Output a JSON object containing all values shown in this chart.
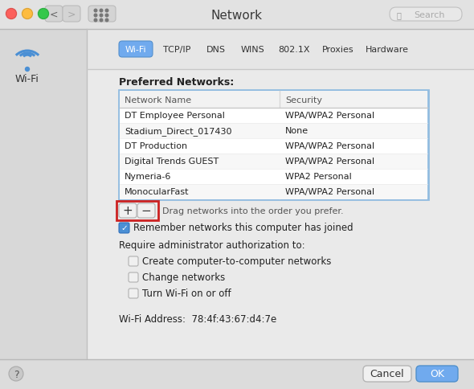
{
  "title": "Network",
  "bg_color": "#d4d4d4",
  "toolbar_color": "#e2e2e2",
  "toolbar_gradient_top": "#ebebeb",
  "toolbar_gradient_bot": "#d8d8d8",
  "panel_bg": "#eaeaea",
  "sidebar_bg": "#d8d8d8",
  "white": "#ffffff",
  "tab_active_color": "#70aaee",
  "tab_active_text": "#ffffff",
  "tab_inactive_text": "#333333",
  "tabs": [
    "Wi-Fi",
    "TCP/IP",
    "DNS",
    "WINS",
    "802.1X",
    "Proxies",
    "Hardware"
  ],
  "active_tab": 0,
  "section_title": "Preferred Networks:",
  "table_headers": [
    "Network Name",
    "Security"
  ],
  "table_rows": [
    [
      "DT Employee Personal",
      "WPA/WPA2 Personal"
    ],
    [
      "Stadium_Direct_017430",
      "None"
    ],
    [
      "DT Production",
      "WPA/WPA2 Personal"
    ],
    [
      "Digital Trends GUEST",
      "WPA/WPA2 Personal"
    ],
    [
      "Nymeria-6",
      "WPA2 Personal"
    ],
    [
      "MonocularFast",
      "WPA/WPA2 Personal"
    ]
  ],
  "drag_text": "Drag networks into the order you prefer.",
  "remember_text": "Remember networks this computer has joined",
  "admin_label": "Require administrator authorization to:",
  "admin_options": [
    "Create computer-to-computer networks",
    "Change networks",
    "Turn Wi-Fi on or off"
  ],
  "wifi_address_label": "Wi-Fi Address:  78:4f:43:67:d4:7e",
  "cancel_btn": "Cancel",
  "ok_btn": "OK",
  "sidebar_icon_label": "Wi-Fi",
  "window_title": "Network",
  "search_placeholder": "Search",
  "table_border_color": "#92bce0",
  "red_border_color": "#cc2222",
  "checkbox_color": "#4a8fd4",
  "button_bg": "#f0f0f0",
  "button_border": "#b0b0b0",
  "traffic_red": "#fc605c",
  "traffic_yellow": "#fdbc40",
  "traffic_green": "#35c84b",
  "wifi_icon_color": "#4a8fd4",
  "bottom_bar_bg": "#dcdcdc"
}
